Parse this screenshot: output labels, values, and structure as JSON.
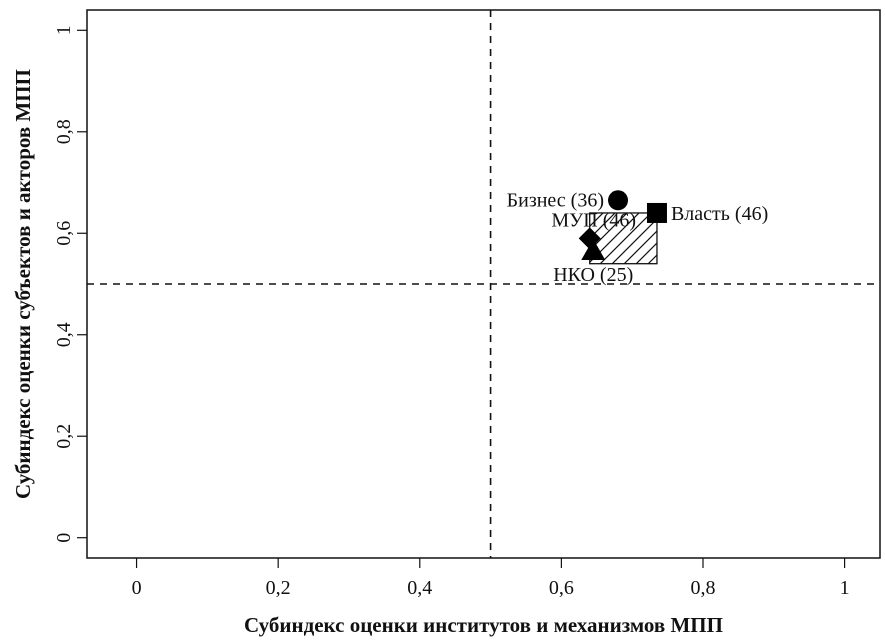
{
  "chart_data": {
    "type": "scatter",
    "xlabel": "Субиндекс оценки институтов и механизмов МПП",
    "ylabel": "Субиндекс оценки субъектов и акторов МПП",
    "xlim": [
      -0.07,
      1.05
    ],
    "ylim": [
      -0.04,
      1.04
    ],
    "xticks": [
      0,
      0.2,
      0.4,
      0.6,
      0.8,
      1
    ],
    "xtick_labels": [
      "0",
      "0,2",
      "0,4",
      "0,6",
      "0,8",
      "1"
    ],
    "yticks": [
      0,
      0.2,
      0.4,
      0.6,
      0.8,
      1
    ],
    "ytick_labels": [
      "0",
      "0,2",
      "0,4",
      "0,6",
      "0,8",
      "1"
    ],
    "reference_lines": {
      "x": 0.5,
      "y": 0.5,
      "style": "dashed"
    },
    "grid": false,
    "points": [
      {
        "label": "Бизнес (36)",
        "x": 0.68,
        "y": 0.665,
        "marker": "circle",
        "label_side": "left"
      },
      {
        "label": "Власть (46)",
        "x": 0.735,
        "y": 0.64,
        "marker": "square",
        "label_side": "right"
      },
      {
        "label": "МУП (46)",
        "x": 0.64,
        "y": 0.59,
        "marker": "diamond",
        "label_side": "right"
      },
      {
        "label": "НКО (25)",
        "x": 0.645,
        "y": 0.565,
        "marker": "triangle",
        "label_side": "below"
      }
    ],
    "region": {
      "fill": "hatched",
      "x_min": 0.64,
      "x_max": 0.735,
      "y_min": 0.54,
      "y_max": 0.64
    }
  }
}
